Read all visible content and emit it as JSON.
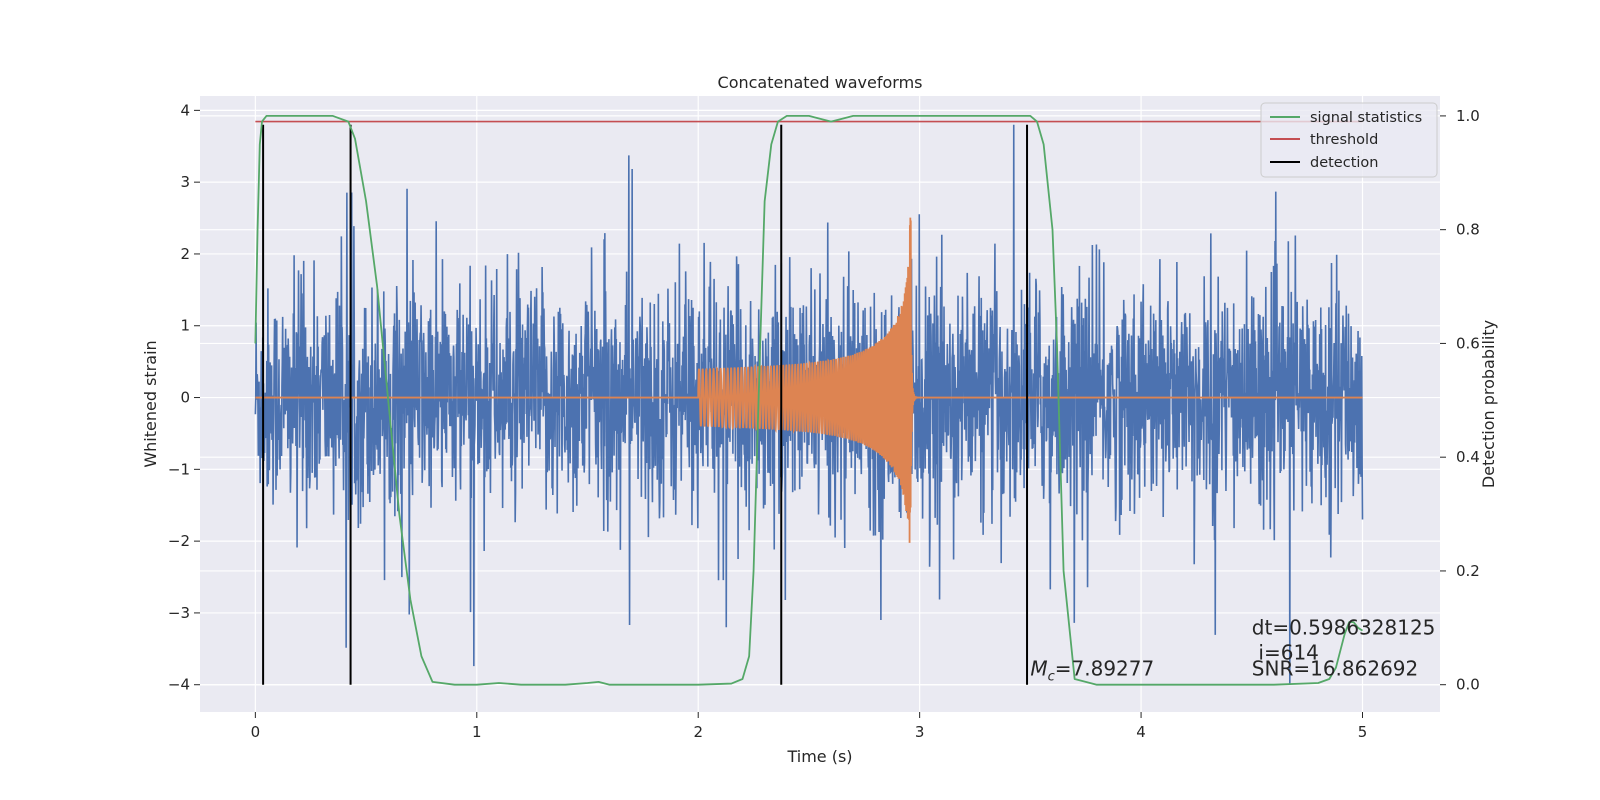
{
  "chart_data": {
    "type": "line",
    "title": "Concatenated waveforms",
    "xlabel": "Time (s)",
    "ylabel": "Whitened strain",
    "y2label": "Detection probability",
    "xlim": [
      -0.25,
      5.35
    ],
    "ylim": [
      -4.38,
      4.2
    ],
    "y2lim": [
      -0.048,
      1.035
    ],
    "xticks": [
      0,
      1,
      2,
      3,
      4,
      5
    ],
    "yticks": [
      -4,
      -3,
      -2,
      -1,
      0,
      1,
      2,
      3,
      4
    ],
    "y2ticks": [
      0.0,
      0.2,
      0.4,
      0.6,
      0.8,
      1.0
    ],
    "y2ticklabels": [
      "0.0",
      "0.2",
      "0.4",
      "0.6",
      "0.8",
      "1.0"
    ],
    "grid": true,
    "legend_position": "top-right",
    "colors": {
      "strain": "#4c72b0",
      "template": "#dd8452",
      "signal_statistics": "#55a868",
      "threshold": "#c44e52",
      "detection": "#000000",
      "background": "#eaeaf2"
    },
    "series": [
      {
        "name": "",
        "kind": "noise-strain",
        "x_range": [
          0,
          5
        ],
        "typical_amplitude": 1.6,
        "peak_amplitude": 3.8,
        "color": "#4c72b0"
      },
      {
        "name": "",
        "kind": "chirp-template",
        "x_range": [
          2.0,
          3.0
        ],
        "start_amplitude": 0.4,
        "peak_amplitude": 2.6,
        "peak_time": 2.96,
        "color": "#dd8452"
      },
      {
        "name": "signal statistics",
        "axis": "right",
        "x": [
          0,
          0.01,
          0.02,
          0.03,
          0.05,
          0.1,
          0.2,
          0.35,
          0.42,
          0.45,
          0.5,
          0.55,
          0.6,
          0.65,
          0.7,
          0.75,
          0.8,
          0.9,
          1.0,
          1.1,
          1.2,
          1.4,
          1.5,
          1.55,
          1.6,
          1.8,
          2.0,
          2.15,
          2.2,
          2.23,
          2.25,
          2.28,
          2.3,
          2.33,
          2.36,
          2.4,
          2.5,
          2.6,
          2.7,
          2.8,
          3.0,
          3.2,
          3.4,
          3.5,
          3.53,
          3.56,
          3.6,
          3.62,
          3.65,
          3.7,
          3.8,
          4.0,
          4.3,
          4.6,
          4.8,
          4.85,
          4.88,
          4.9,
          4.92,
          4.94,
          4.96,
          4.98,
          5.0
        ],
        "values": [
          0.6,
          0.8,
          0.95,
          0.99,
          1.0,
          1.0,
          1.0,
          1.0,
          0.99,
          0.96,
          0.85,
          0.7,
          0.5,
          0.3,
          0.15,
          0.05,
          0.005,
          0.0,
          0.0,
          0.003,
          0.0,
          0.0,
          0.003,
          0.005,
          0.0,
          0.0,
          0.0,
          0.002,
          0.01,
          0.05,
          0.2,
          0.6,
          0.85,
          0.95,
          0.99,
          1.0,
          1.0,
          0.99,
          1.0,
          1.0,
          1.0,
          1.0,
          1.0,
          1.0,
          0.99,
          0.95,
          0.8,
          0.6,
          0.2,
          0.01,
          0.0,
          0.0,
          0.0,
          0.0,
          0.003,
          0.01,
          0.03,
          0.06,
          0.09,
          0.11,
          0.11,
          0.1,
          0.095
        ],
        "color": "#55a868"
      },
      {
        "name": "threshold",
        "axis": "right",
        "x": [
          0,
          5
        ],
        "values": [
          0.99,
          0.99
        ],
        "color": "#c44e52"
      },
      {
        "name": "detection",
        "axis": "left",
        "type": "vlines",
        "x": [
          0.035,
          0.43,
          2.375,
          3.485
        ],
        "ymin": -4,
        "ymax": 3.8,
        "color": "#000000"
      }
    ],
    "annotations": [
      {
        "id": "mc",
        "text": "=7.89277",
        "symbol": "M",
        "subscript": "c",
        "x": 3.5,
        "y": -3.87
      },
      {
        "id": "dt",
        "text": "dt=0.5986328125",
        "x": 4.5,
        "y": -3.3
      },
      {
        "id": "i",
        "text": "i=614",
        "x": 4.53,
        "y": -3.65
      },
      {
        "id": "snr",
        "text": "SNR=16.862692",
        "x": 4.5,
        "y": -3.87
      }
    ]
  }
}
